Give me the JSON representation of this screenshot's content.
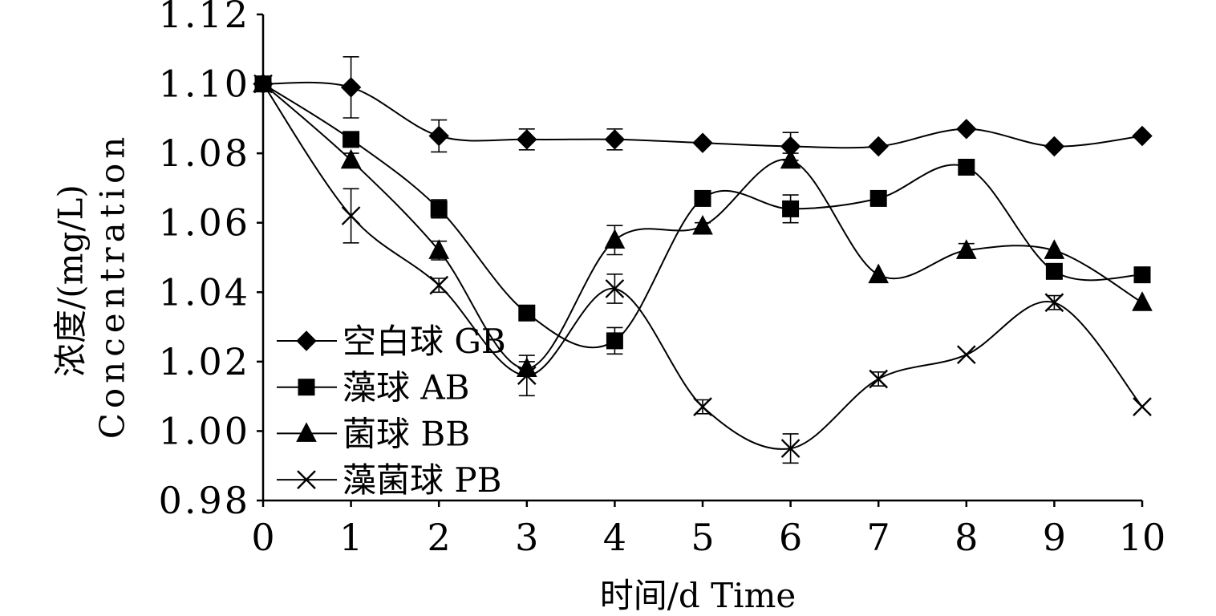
{
  "chart_data": {
    "type": "line",
    "smooth": true,
    "xlabel": "时间/d Time",
    "ylabel": [
      "浓度/(mg/L)",
      "Concentration"
    ],
    "x": [
      0,
      1,
      2,
      3,
      4,
      5,
      6,
      7,
      8,
      9,
      10
    ],
    "xlim": [
      0,
      10
    ],
    "xticks": [
      "0",
      "1",
      "2",
      "3",
      "4",
      "5",
      "6",
      "7",
      "8",
      "9",
      "10"
    ],
    "ylim": [
      0.98,
      1.12
    ],
    "yticks": [
      "0.98",
      "1.00",
      "1.02",
      "1.04",
      "1.06",
      "1.08",
      "1.10",
      "1.12"
    ],
    "grid": false,
    "legend_position": "lower-left",
    "series": [
      {
        "name": "空白球 GB",
        "marker": "diamond",
        "values": [
          1.1,
          1.099,
          1.085,
          1.084,
          1.084,
          1.083,
          1.082,
          1.082,
          1.087,
          1.082,
          1.085
        ],
        "error": [
          0,
          0.0088,
          0.0046,
          0.003,
          0.003,
          0,
          0.004,
          0,
          0,
          0,
          0
        ]
      },
      {
        "name": "藻球 AB",
        "marker": "square",
        "values": [
          1.1,
          1.084,
          1.064,
          1.034,
          1.026,
          1.067,
          1.064,
          1.067,
          1.076,
          1.046,
          1.045
        ],
        "error": [
          0,
          0.002,
          0.0026,
          0.002,
          0.0038,
          0,
          0.004,
          0,
          0,
          0,
          0
        ]
      },
      {
        "name": "菌球 BB",
        "marker": "triangle",
        "values": [
          1.1,
          1.078,
          1.052,
          1.018,
          1.055,
          1.059,
          1.078,
          1.045,
          1.052,
          1.052,
          1.037
        ],
        "error": [
          0,
          0.002,
          0.0027,
          0.002,
          0.0042,
          0.001,
          0.002,
          0,
          0.002,
          0,
          0
        ]
      },
      {
        "name": "藻菌球 PB",
        "marker": "cross",
        "values": [
          1.1,
          1.062,
          1.042,
          1.016,
          1.041,
          1.007,
          0.995,
          1.015,
          1.022,
          1.037,
          1.007
        ],
        "error": [
          0,
          0.0078,
          0.002,
          0.0058,
          0.0042,
          0.002,
          0.0042,
          0.002,
          0,
          0.002,
          0
        ]
      }
    ]
  },
  "colors": {
    "series": "#000000",
    "axis": "#000000",
    "background": "#ffffff"
  }
}
